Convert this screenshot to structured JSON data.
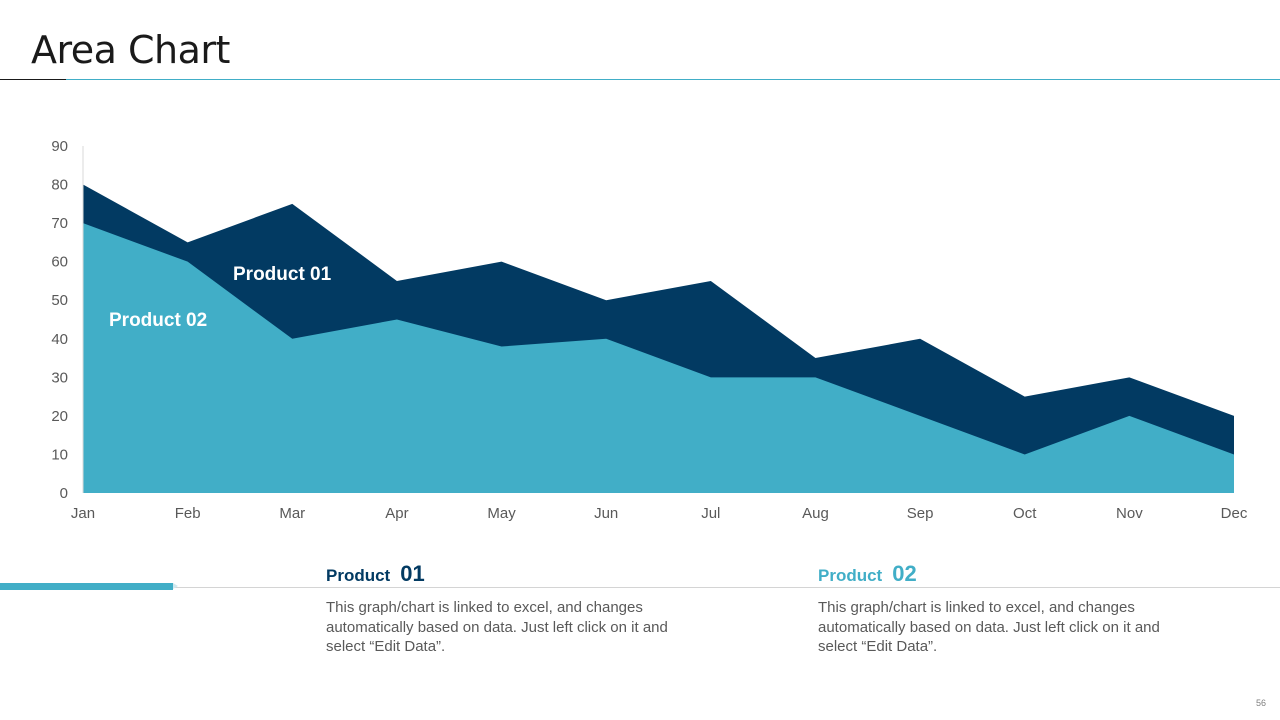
{
  "slide": {
    "title": "Area Chart",
    "page_number": "56"
  },
  "colors": {
    "product01": "#023a62",
    "product02": "#41aec7",
    "axis_text": "#595959"
  },
  "chart_data": {
    "type": "area",
    "title": "",
    "xlabel": "",
    "ylabel": "",
    "categories": [
      "Jan",
      "Feb",
      "Mar",
      "Apr",
      "May",
      "Jun",
      "Jul",
      "Aug",
      "Sep",
      "Oct",
      "Nov",
      "Dec"
    ],
    "series": [
      {
        "name": "Product 01",
        "values": [
          80,
          65,
          75,
          55,
          60,
          50,
          55,
          35,
          40,
          25,
          30,
          20
        ]
      },
      {
        "name": "Product 02",
        "values": [
          70,
          60,
          40,
          45,
          38,
          40,
          30,
          30,
          20,
          10,
          20,
          10
        ]
      }
    ],
    "ylim": [
      0,
      90
    ],
    "yticks": [
      0,
      10,
      20,
      30,
      40,
      50,
      60,
      70,
      80,
      90
    ],
    "grid": false,
    "legend": "none",
    "labels": {
      "product01": "Product 01",
      "product02": "Product 02"
    }
  },
  "info": [
    {
      "name": "Product",
      "number": "01",
      "description": "This graph/chart is linked to excel, and changes automatically based on data. Just left click on it and select “Edit Data”."
    },
    {
      "name": "Product",
      "number": "02",
      "description": "This graph/chart is linked to excel, and changes automatically based on data. Just left click on it and select “Edit Data”."
    }
  ]
}
